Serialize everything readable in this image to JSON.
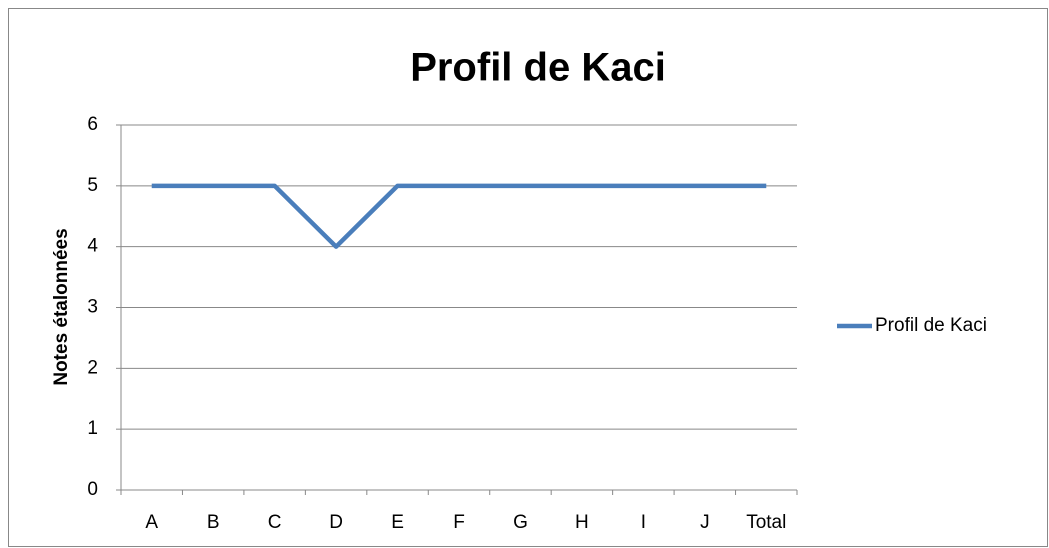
{
  "chart_data": {
    "type": "line",
    "title": "Profil de Kaci",
    "y_label": "Notes étalonnées",
    "categories": [
      "A",
      "B",
      "C",
      "D",
      "E",
      "F",
      "G",
      "H",
      "I",
      "J",
      "Total"
    ],
    "series": [
      {
        "name": "Profil de Kaci",
        "color": "#4a7ebb",
        "values": [
          5,
          5,
          5,
          4,
          5,
          5,
          5,
          5,
          5,
          5,
          5
        ]
      }
    ],
    "ylim": [
      0,
      6
    ],
    "yticks": [
      0,
      1,
      2,
      3,
      4,
      5,
      6
    ],
    "grid": true,
    "legend": "right"
  }
}
